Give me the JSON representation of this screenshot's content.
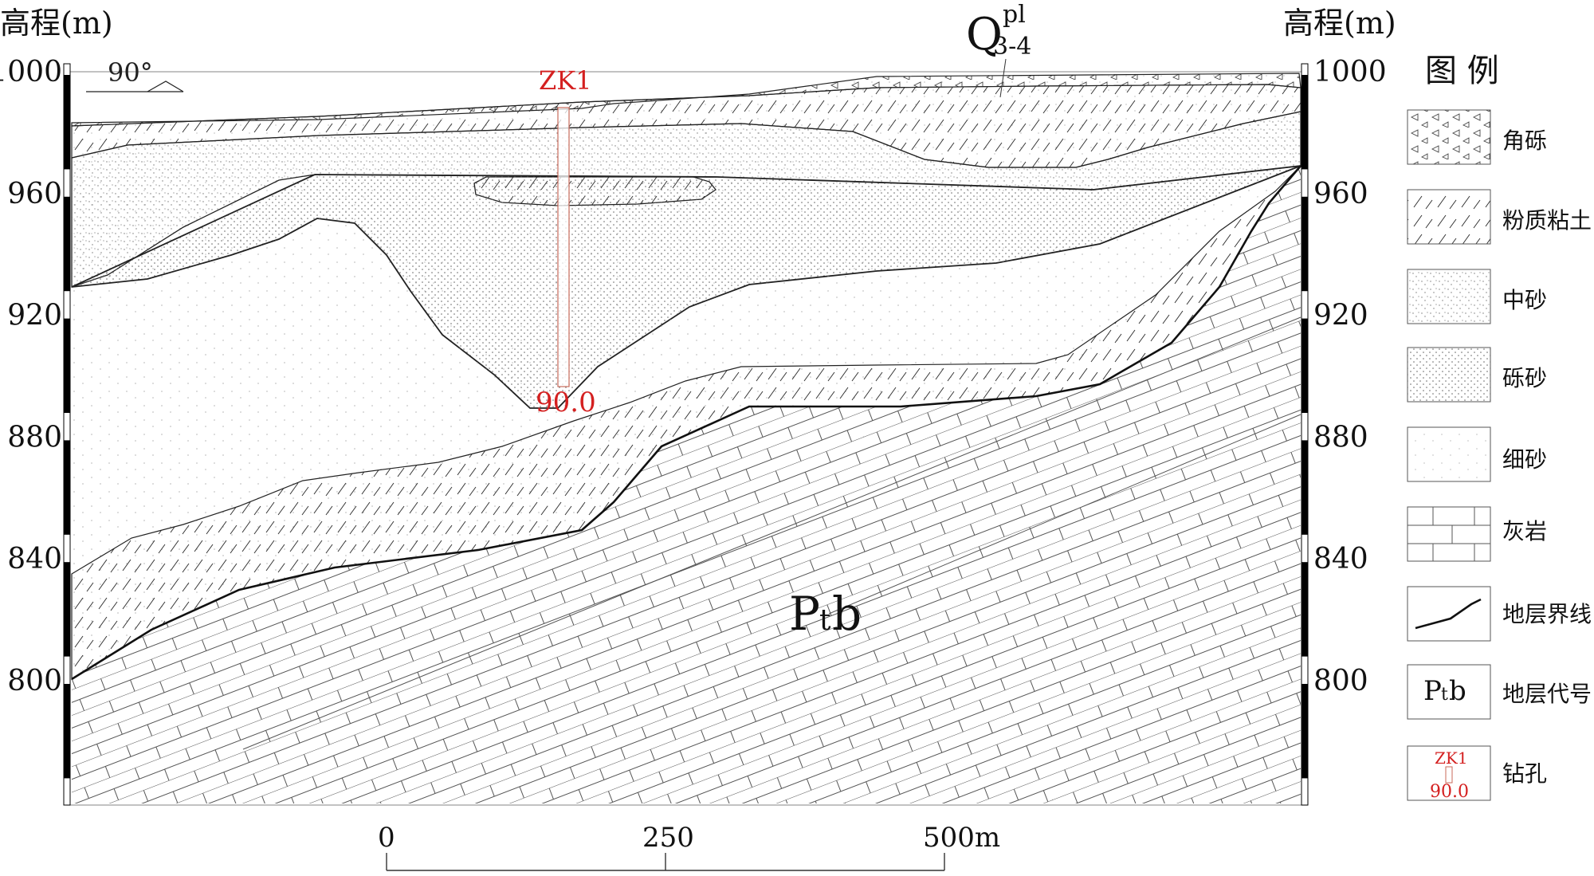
{
  "axis": {
    "left_title": "高程(m)",
    "right_title": "高程(m)",
    "ticks": [
      {
        "label": "1000",
        "value": 1000
      },
      {
        "label": "960",
        "value": 960
      },
      {
        "label": "920",
        "value": 920
      },
      {
        "label": "880",
        "value": 880
      },
      {
        "label": "840",
        "value": 840
      },
      {
        "label": "800",
        "value": 800
      }
    ]
  },
  "orientation": "90°",
  "strata_labels": {
    "quaternary_main": "Q",
    "quaternary_sup": "pl",
    "quaternary_sub": "3-4",
    "bedrock_main": "P",
    "bedrock_sub": "t",
    "bedrock_tail": "b"
  },
  "borehole": {
    "id": "ZK1",
    "depth": "90.0",
    "color": "#d42020"
  },
  "scale_bar": {
    "labels": [
      "0",
      "250",
      "500m"
    ]
  },
  "legend": {
    "title": "图  例",
    "items": [
      {
        "key": "breccia",
        "label": "角砾"
      },
      {
        "key": "silty_clay",
        "label": "粉质粘土"
      },
      {
        "key": "medium_sand",
        "label": "中砂"
      },
      {
        "key": "gravel_sand",
        "label": "砾砂"
      },
      {
        "key": "fine_sand",
        "label": "细砂"
      },
      {
        "key": "limestone",
        "label": "灰岩"
      },
      {
        "key": "boundary",
        "label": "地层界线"
      },
      {
        "key": "code",
        "label": "地层代号",
        "sample_main": "P",
        "sample_sub": "t",
        "sample_tail": "b"
      },
      {
        "key": "borehole",
        "label": "钻孔",
        "sample_id": "ZK1",
        "sample_depth": "90.0"
      }
    ]
  }
}
